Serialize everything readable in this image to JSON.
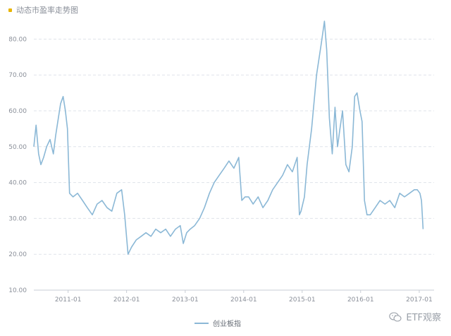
{
  "chart_data": {
    "type": "line",
    "title": "动态市盈率走势图",
    "xlabel": "",
    "ylabel": "",
    "ylim": [
      10,
      85
    ],
    "yticks": [
      "10.00",
      "20.00",
      "30.00",
      "40.00",
      "50.00",
      "60.00",
      "70.00",
      "80.00"
    ],
    "xticks": [
      "2011-01",
      "2012-01",
      "2013-01",
      "2014-01",
      "2015-01",
      "2016-01",
      "2017-01"
    ],
    "x_range": [
      "2010-06",
      "2017-02"
    ],
    "grid": true,
    "legend_position": "bottom-center",
    "series": [
      {
        "name": "创业板指",
        "color": "#8bb8d6",
        "x": [
          "2010-06-01",
          "2010-06-15",
          "2010-07-01",
          "2010-07-15",
          "2010-08-01",
          "2010-08-20",
          "2010-09-10",
          "2010-10-01",
          "2010-10-15",
          "2010-11-01",
          "2010-11-15",
          "2010-12-01",
          "2010-12-15",
          "2010-12-28",
          "2011-01-10",
          "2011-02-01",
          "2011-03-01",
          "2011-04-01",
          "2011-05-01",
          "2011-06-01",
          "2011-07-01",
          "2011-08-01",
          "2011-09-01",
          "2011-10-01",
          "2011-11-01",
          "2011-12-01",
          "2011-12-20",
          "2012-01-10",
          "2012-02-01",
          "2012-03-01",
          "2012-04-01",
          "2012-05-01",
          "2012-06-01",
          "2012-07-01",
          "2012-08-01",
          "2012-09-01",
          "2012-10-01",
          "2012-11-01",
          "2012-12-01",
          "2012-12-20",
          "2013-01-10",
          "2013-02-01",
          "2013-03-01",
          "2013-04-01",
          "2013-05-01",
          "2013-06-01",
          "2013-07-01",
          "2013-08-01",
          "2013-09-01",
          "2013-10-01",
          "2013-11-01",
          "2013-12-01",
          "2013-12-20",
          "2014-01-10",
          "2014-02-01",
          "2014-03-01",
          "2014-04-01",
          "2014-05-01",
          "2014-06-01",
          "2014-07-01",
          "2014-08-01",
          "2014-09-01",
          "2014-10-01",
          "2014-11-01",
          "2014-12-01",
          "2014-12-15",
          "2014-12-25",
          "2015-01-15",
          "2015-02-01",
          "2015-03-01",
          "2015-04-01",
          "2015-05-01",
          "2015-05-20",
          "2015-06-03",
          "2015-06-20",
          "2015-07-08",
          "2015-07-25",
          "2015-08-10",
          "2015-08-25",
          "2015-09-10",
          "2015-10-01",
          "2015-10-20",
          "2015-11-10",
          "2015-11-25",
          "2015-12-10",
          "2015-12-28",
          "2016-01-10",
          "2016-01-25",
          "2016-02-10",
          "2016-03-01",
          "2016-04-01",
          "2016-05-01",
          "2016-06-01",
          "2016-07-01",
          "2016-08-01",
          "2016-09-01",
          "2016-10-01",
          "2016-11-01",
          "2016-12-01",
          "2016-12-20",
          "2017-01-05",
          "2017-01-15",
          "2017-01-25"
        ],
        "values": [
          50,
          56,
          48,
          45,
          47,
          50,
          52,
          48,
          53,
          58,
          62,
          64,
          60,
          55,
          37,
          36,
          37,
          35,
          33,
          31,
          34,
          35,
          33,
          32,
          37,
          38,
          31,
          20,
          22,
          24,
          25,
          26,
          25,
          27,
          26,
          27,
          25,
          27,
          28,
          23,
          26,
          27,
          28,
          30,
          33,
          37,
          40,
          42,
          44,
          46,
          44,
          47,
          35,
          36,
          36,
          34,
          36,
          33,
          35,
          38,
          40,
          42,
          45,
          43,
          47,
          31,
          32,
          36,
          45,
          55,
          70,
          79,
          85,
          77,
          58,
          48,
          61,
          50,
          55,
          60,
          45,
          43,
          50,
          64,
          65,
          60,
          57,
          35,
          31,
          31,
          33,
          35,
          34,
          35,
          33,
          37,
          36,
          37,
          38,
          38,
          37,
          35,
          27
        ]
      }
    ]
  },
  "watermark": {
    "text": "ETF观察",
    "icon": "wechat-icon"
  }
}
